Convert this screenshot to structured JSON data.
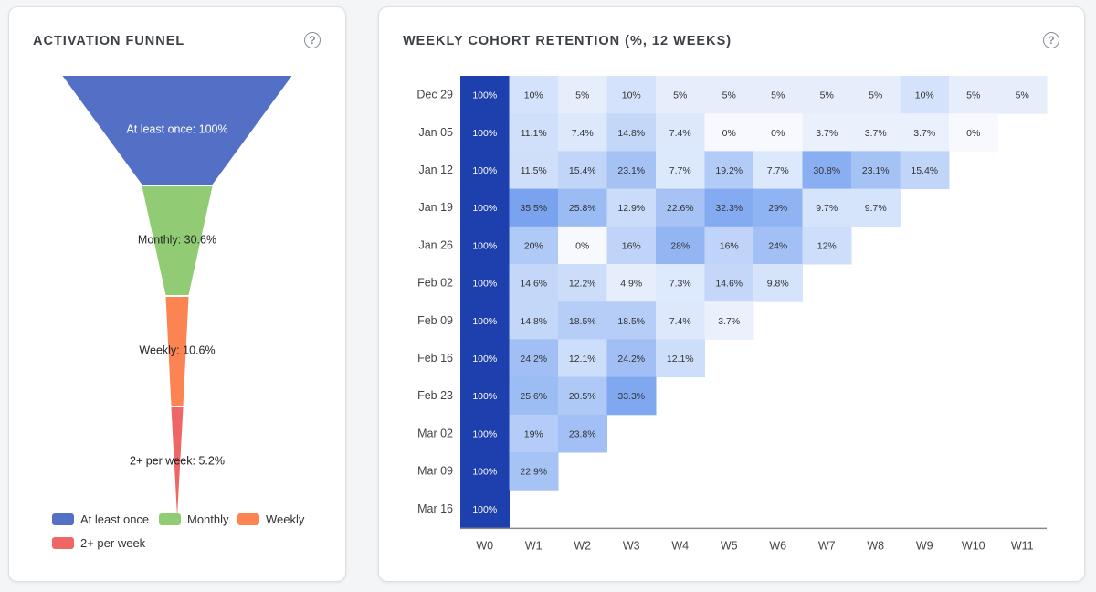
{
  "funnel": {
    "title": "ACTIVATION FUNNEL",
    "help_icon": "question-circle-icon",
    "chart_data": {
      "type": "funnel",
      "stages": [
        {
          "name": "At least once",
          "value": 100,
          "label": "At least once: 100%",
          "color": "#5470c6"
        },
        {
          "name": "Monthly",
          "value": 30.6,
          "label": "Monthly: 30.6%",
          "color": "#91cc75"
        },
        {
          "name": "Weekly",
          "value": 10.6,
          "label": "Weekly: 10.6%",
          "color": "#fc8452"
        },
        {
          "name": "2+ per week",
          "value": 5.2,
          "label": "2+ per week: 5.2%",
          "color": "#ee6666"
        }
      ],
      "legend_position": "bottom"
    }
  },
  "retention": {
    "title": "WEEKLY COHORT RETENTION (%, 12 WEEKS)",
    "help_icon": "question-circle-icon",
    "chart_data": {
      "type": "heatmap",
      "x_labels": [
        "W0",
        "W1",
        "W2",
        "W3",
        "W4",
        "W5",
        "W6",
        "W7",
        "W8",
        "W9",
        "W10",
        "W11"
      ],
      "y_labels": [
        "Dec 29",
        "Jan 05",
        "Jan 12",
        "Jan 19",
        "Jan 26",
        "Feb 02",
        "Feb 09",
        "Feb 16",
        "Feb 23",
        "Mar 02",
        "Mar 09",
        "Mar 16"
      ],
      "values": [
        [
          100,
          10,
          5,
          10,
          5,
          5,
          5,
          5,
          5,
          10,
          5,
          5
        ],
        [
          100,
          11.1,
          7.4,
          14.8,
          7.4,
          0,
          0,
          3.7,
          3.7,
          3.7,
          0
        ],
        [
          100,
          11.5,
          15.4,
          23.1,
          7.7,
          19.2,
          7.7,
          30.8,
          23.1,
          15.4
        ],
        [
          100,
          35.5,
          25.8,
          12.9,
          22.6,
          32.3,
          29,
          9.7,
          9.7
        ],
        [
          100,
          20,
          0,
          16,
          28,
          16,
          24,
          12
        ],
        [
          100,
          14.6,
          12.2,
          4.9,
          7.3,
          14.6,
          9.8
        ],
        [
          100,
          14.8,
          18.5,
          18.5,
          7.4,
          3.7
        ],
        [
          100,
          24.2,
          12.1,
          24.2,
          12.1
        ],
        [
          100,
          25.6,
          20.5,
          33.3
        ],
        [
          100,
          19,
          23.8
        ],
        [
          100,
          22.9
        ],
        [
          100
        ]
      ],
      "unit": "%",
      "color_low": "#f7f9fe",
      "color_high": "#1e3fae"
    }
  }
}
